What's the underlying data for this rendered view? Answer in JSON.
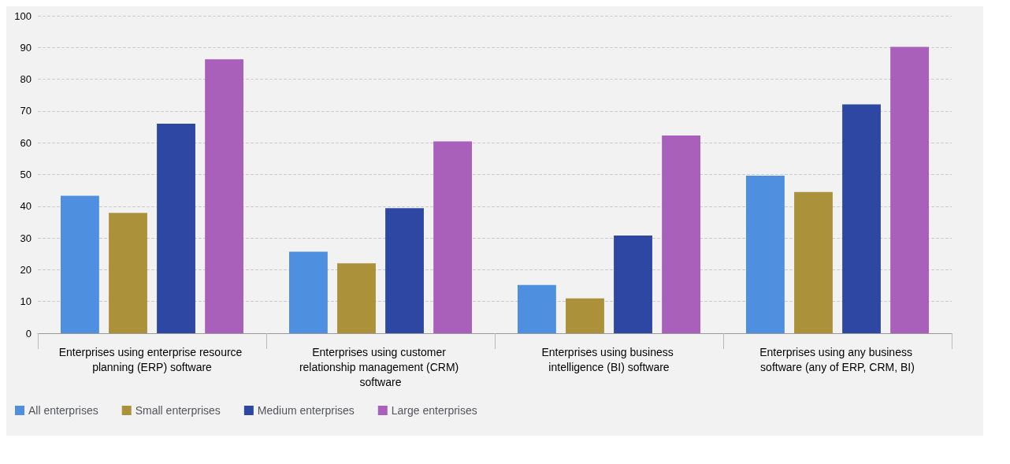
{
  "chart_data": {
    "type": "bar",
    "categories": [
      "Enterprises using enterprise resource planning (ERP) software",
      "Enterprises using customer relationship management (CRM) software",
      "Enterprises using business intelligence (BI) software",
      "Enterprises using any business software (any of ERP, CRM, BI)"
    ],
    "series": [
      {
        "name": "All enterprises",
        "color": "#4e8fe0",
        "values": [
          43.3,
          25.7,
          15.2,
          49.6
        ]
      },
      {
        "name": "Small enterprises",
        "color": "#ab9139",
        "values": [
          37.9,
          22.0,
          11.0,
          44.5
        ]
      },
      {
        "name": "Medium enterprises",
        "color": "#2e47a3",
        "values": [
          66.0,
          39.4,
          30.8,
          72.1
        ]
      },
      {
        "name": "Large enterprises",
        "color": "#a860bb",
        "values": [
          86.3,
          60.4,
          62.3,
          90.2
        ]
      }
    ],
    "ylim": [
      0,
      100
    ],
    "yticks": [
      0,
      10,
      20,
      30,
      40,
      50,
      60,
      70,
      80,
      90,
      100
    ],
    "grid": "y",
    "legend": "bottom left"
  }
}
